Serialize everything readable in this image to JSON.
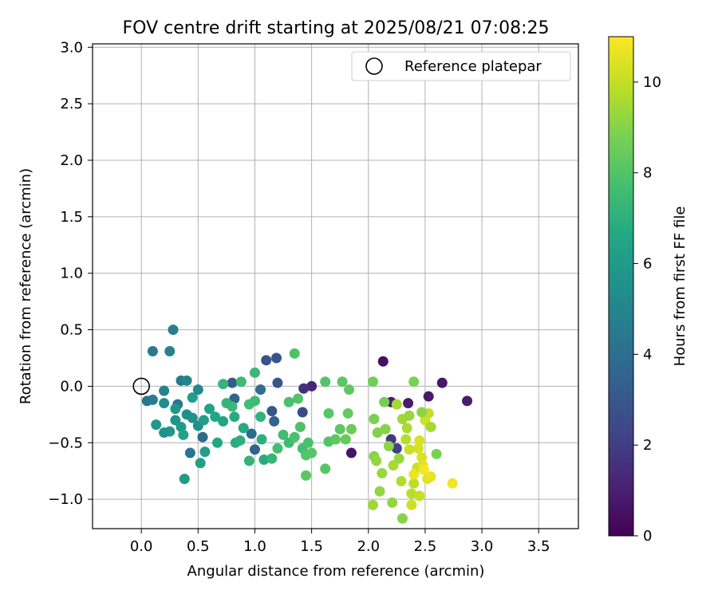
{
  "chart_data": {
    "type": "scatter",
    "title": "FOV centre drift starting at 2025/08/21 07:08:25",
    "xlabel": "Angular distance from reference (arcmin)",
    "ylabel": "Rotation from reference (arcmin)",
    "xlim": [
      -0.43,
      3.85
    ],
    "ylim": [
      -1.26,
      3.03
    ],
    "xticks": [
      0.0,
      0.5,
      1.0,
      1.5,
      2.0,
      2.5,
      3.0,
      3.5
    ],
    "xtick_labels": [
      "0.0",
      "0.5",
      "1.0",
      "1.5",
      "2.0",
      "2.5",
      "3.0",
      "3.5"
    ],
    "yticks": [
      -1.0,
      -0.5,
      0.0,
      0.5,
      1.0,
      1.5,
      2.0,
      2.5,
      3.0
    ],
    "ytick_labels": [
      "−1.0",
      "−0.5",
      "0.0",
      "0.5",
      "1.0",
      "1.5",
      "2.0",
      "2.5",
      "3.0"
    ],
    "grid": true,
    "colormap": "viridis",
    "colorbar": {
      "label": "Hours from first FF file",
      "range": [
        0,
        11
      ],
      "ticks": [
        0,
        2,
        4,
        6,
        8,
        10
      ],
      "tick_labels": [
        "0",
        "2",
        "4",
        "6",
        "8",
        "10"
      ]
    },
    "legend": {
      "placement": "top-right",
      "entries": [
        {
          "label": "Reference platepar",
          "marker": "open-circle"
        }
      ]
    },
    "reference_point": {
      "x": 0.0,
      "y": 0.0
    },
    "points": [
      [
        2.13,
        0.22,
        0.5
      ],
      [
        2.65,
        0.03,
        0.7
      ],
      [
        2.87,
        -0.13,
        0.9
      ],
      [
        2.53,
        -0.09,
        0.8
      ],
      [
        2.2,
        -0.14,
        1.0
      ],
      [
        2.35,
        -0.15,
        0.9
      ],
      [
        1.85,
        -0.59,
        0.6
      ],
      [
        1.5,
        0.0,
        1.2
      ],
      [
        1.43,
        -0.02,
        1.5
      ],
      [
        2.2,
        -0.47,
        1.8
      ],
      [
        2.25,
        -0.55,
        2.2
      ],
      [
        1.42,
        -0.23,
        2.5
      ],
      [
        1.1,
        0.23,
        2.8
      ],
      [
        1.19,
        0.25,
        2.9
      ],
      [
        1.2,
        0.03,
        3.0
      ],
      [
        0.8,
        0.03,
        3.2
      ],
      [
        1.15,
        -0.22,
        3.0
      ],
      [
        1.17,
        -0.31,
        3.5
      ],
      [
        1.0,
        -0.56,
        3.4
      ],
      [
        0.82,
        -0.11,
        3.6
      ],
      [
        1.05,
        -0.03,
        4.0
      ],
      [
        0.54,
        -0.45,
        3.8
      ],
      [
        0.43,
        -0.59,
        4.2
      ],
      [
        0.97,
        -0.42,
        3.9
      ],
      [
        0.32,
        -0.16,
        4.3
      ],
      [
        0.1,
        0.31,
        4.5
      ],
      [
        0.28,
        0.5,
        4.7
      ],
      [
        0.25,
        0.31,
        4.8
      ],
      [
        0.05,
        -0.13,
        4.3
      ],
      [
        0.1,
        -0.12,
        4.6
      ],
      [
        0.2,
        -0.04,
        4.9
      ],
      [
        0.35,
        0.05,
        4.5
      ],
      [
        0.4,
        0.05,
        5.0
      ],
      [
        0.5,
        -0.03,
        5.2
      ],
      [
        0.2,
        -0.15,
        5.3
      ],
      [
        0.4,
        -0.25,
        5.4
      ],
      [
        0.45,
        -0.28,
        5.6
      ],
      [
        0.5,
        -0.35,
        5.5
      ],
      [
        0.3,
        -0.3,
        5.7
      ],
      [
        0.25,
        -0.4,
        5.8
      ],
      [
        0.13,
        -0.34,
        5.9
      ],
      [
        0.2,
        -0.41,
        5.6
      ],
      [
        0.35,
        -0.36,
        6.0
      ],
      [
        0.38,
        -0.82,
        6.0
      ],
      [
        0.52,
        -0.68,
        6.2
      ],
      [
        0.56,
        -0.58,
        6.1
      ],
      [
        0.3,
        -0.2,
        5.8
      ],
      [
        0.45,
        -0.1,
        6.1
      ],
      [
        0.6,
        -0.2,
        6.3
      ],
      [
        0.55,
        -0.3,
        6.2
      ],
      [
        0.37,
        -0.43,
        6.4
      ],
      [
        0.65,
        -0.27,
        6.6
      ],
      [
        0.72,
        -0.31,
        6.5
      ],
      [
        0.67,
        -0.5,
        6.5
      ],
      [
        0.82,
        -0.27,
        6.8
      ],
      [
        0.9,
        -0.37,
        6.7
      ],
      [
        0.83,
        -0.5,
        6.9
      ],
      [
        0.87,
        -0.48,
        7.0
      ],
      [
        0.95,
        -0.66,
        7.2
      ],
      [
        1.06,
        -0.47,
        7.0
      ],
      [
        1.08,
        -0.65,
        6.8
      ],
      [
        1.15,
        -0.64,
        7.3
      ],
      [
        1.05,
        -0.27,
        7.1
      ],
      [
        1.0,
        -0.13,
        7.5
      ],
      [
        0.95,
        -0.16,
        7.6
      ],
      [
        1.0,
        0.12,
        7.4
      ],
      [
        1.2,
        -0.55,
        7.7
      ],
      [
        1.3,
        -0.5,
        7.5
      ],
      [
        1.25,
        -0.43,
        7.6
      ],
      [
        1.35,
        -0.45,
        7.8
      ],
      [
        1.4,
        -0.36,
        7.9
      ],
      [
        1.42,
        -0.55,
        7.7
      ],
      [
        1.45,
        -0.61,
        8.0
      ],
      [
        1.47,
        -0.5,
        7.8
      ],
      [
        1.5,
        -0.59,
        8.1
      ],
      [
        1.45,
        -0.79,
        8.2
      ],
      [
        1.35,
        0.29,
        7.9
      ],
      [
        1.62,
        0.04,
        8.0
      ],
      [
        1.77,
        0.04,
        8.2
      ],
      [
        1.83,
        -0.03,
        8.3
      ],
      [
        1.65,
        -0.24,
        8.1
      ],
      [
        1.82,
        -0.24,
        8.4
      ],
      [
        1.65,
        -0.49,
        8.0
      ],
      [
        1.71,
        -0.47,
        8.3
      ],
      [
        1.75,
        -0.38,
        8.2
      ],
      [
        1.62,
        -0.73,
        8.1
      ],
      [
        1.8,
        -0.47,
        8.4
      ],
      [
        1.85,
        -0.38,
        8.5
      ],
      [
        1.38,
        -0.11,
        8.0
      ],
      [
        1.3,
        -0.14,
        7.8
      ],
      [
        0.8,
        -0.18,
        7.4
      ],
      [
        0.72,
        0.02,
        7.2
      ],
      [
        0.88,
        0.04,
        7.5
      ],
      [
        0.75,
        -0.15,
        7.3
      ],
      [
        2.04,
        0.04,
        8.6
      ],
      [
        2.14,
        -0.14,
        8.7
      ],
      [
        2.05,
        -0.29,
        8.8
      ],
      [
        2.08,
        -0.41,
        8.9
      ],
      [
        2.15,
        -0.38,
        9.0
      ],
      [
        2.05,
        -0.62,
        9.0
      ],
      [
        2.07,
        -0.66,
        9.2
      ],
      [
        2.12,
        -0.77,
        9.3
      ],
      [
        2.04,
        -1.05,
        9.4
      ],
      [
        2.1,
        -0.93,
        9.2
      ],
      [
        2.25,
        -0.16,
        9.5
      ],
      [
        2.3,
        -0.29,
        9.4
      ],
      [
        2.4,
        0.04,
        8.8
      ],
      [
        2.34,
        -0.37,
        9.6
      ],
      [
        2.18,
        -0.53,
        9.1
      ],
      [
        2.27,
        -0.64,
        9.3
      ],
      [
        2.22,
        -0.7,
        9.5
      ],
      [
        2.29,
        -0.84,
        9.7
      ],
      [
        2.21,
        -1.03,
        9.2
      ],
      [
        2.3,
        -1.17,
        9.0
      ],
      [
        2.38,
        -0.95,
        9.8
      ],
      [
        2.4,
        -0.86,
        9.9
      ],
      [
        2.45,
        -0.97,
        10.0
      ],
      [
        2.38,
        -1.05,
        10.2
      ],
      [
        2.43,
        -0.72,
        10.1
      ],
      [
        2.44,
        -0.55,
        10.3
      ],
      [
        2.47,
        -0.63,
        10.4
      ],
      [
        2.52,
        -0.82,
        10.5
      ],
      [
        2.55,
        -0.8,
        10.6
      ],
      [
        2.5,
        -0.3,
        10.2
      ],
      [
        2.53,
        -0.24,
        10.0
      ],
      [
        2.55,
        -0.36,
        9.5
      ],
      [
        2.47,
        -0.23,
        9.1
      ],
      [
        2.6,
        -0.6,
        8.8
      ],
      [
        2.36,
        -0.26,
        9.3
      ],
      [
        2.33,
        -0.47,
        9.8
      ],
      [
        2.74,
        -0.86,
        10.8
      ],
      [
        2.48,
        -0.7,
        10.5
      ],
      [
        2.45,
        -0.48,
        10.4
      ],
      [
        2.36,
        -0.56,
        10.1
      ],
      [
        2.4,
        -0.78,
        10.7
      ],
      [
        2.49,
        -0.74,
        10.9
      ]
    ]
  }
}
